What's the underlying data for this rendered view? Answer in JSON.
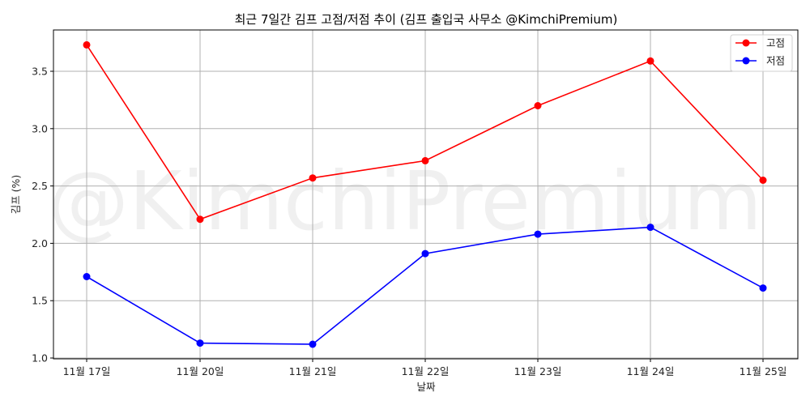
{
  "chart_data": {
    "type": "line",
    "title": "최근 7일간 김프 고점/저점 추이 (김프 출입국 사무소 @KimchiPremium)",
    "xlabel": "날짜",
    "ylabel": "김프 (%)",
    "categories": [
      "11월 17일",
      "11월 20일",
      "11월 21일",
      "11월 22일",
      "11월 23일",
      "11월 24일",
      "11월 25일"
    ],
    "series": [
      {
        "name": "고점",
        "color": "#ff0000",
        "marker": "circle",
        "values": [
          3.73,
          2.21,
          2.57,
          2.72,
          3.2,
          3.59,
          2.55
        ]
      },
      {
        "name": "저점",
        "color": "#0000ff",
        "marker": "circle",
        "values": [
          1.71,
          1.13,
          1.12,
          1.91,
          2.08,
          2.14,
          1.61
        ]
      }
    ],
    "yticks": [
      "1.0",
      "1.5",
      "2.0",
      "2.5",
      "3.0",
      "3.5"
    ],
    "ytick_values": [
      1.0,
      1.5,
      2.0,
      2.5,
      3.0,
      3.5
    ],
    "ylim": [
      0.99,
      3.85
    ],
    "grid": true,
    "legend_position": "upper right",
    "watermark": "@KimchiPremium"
  }
}
